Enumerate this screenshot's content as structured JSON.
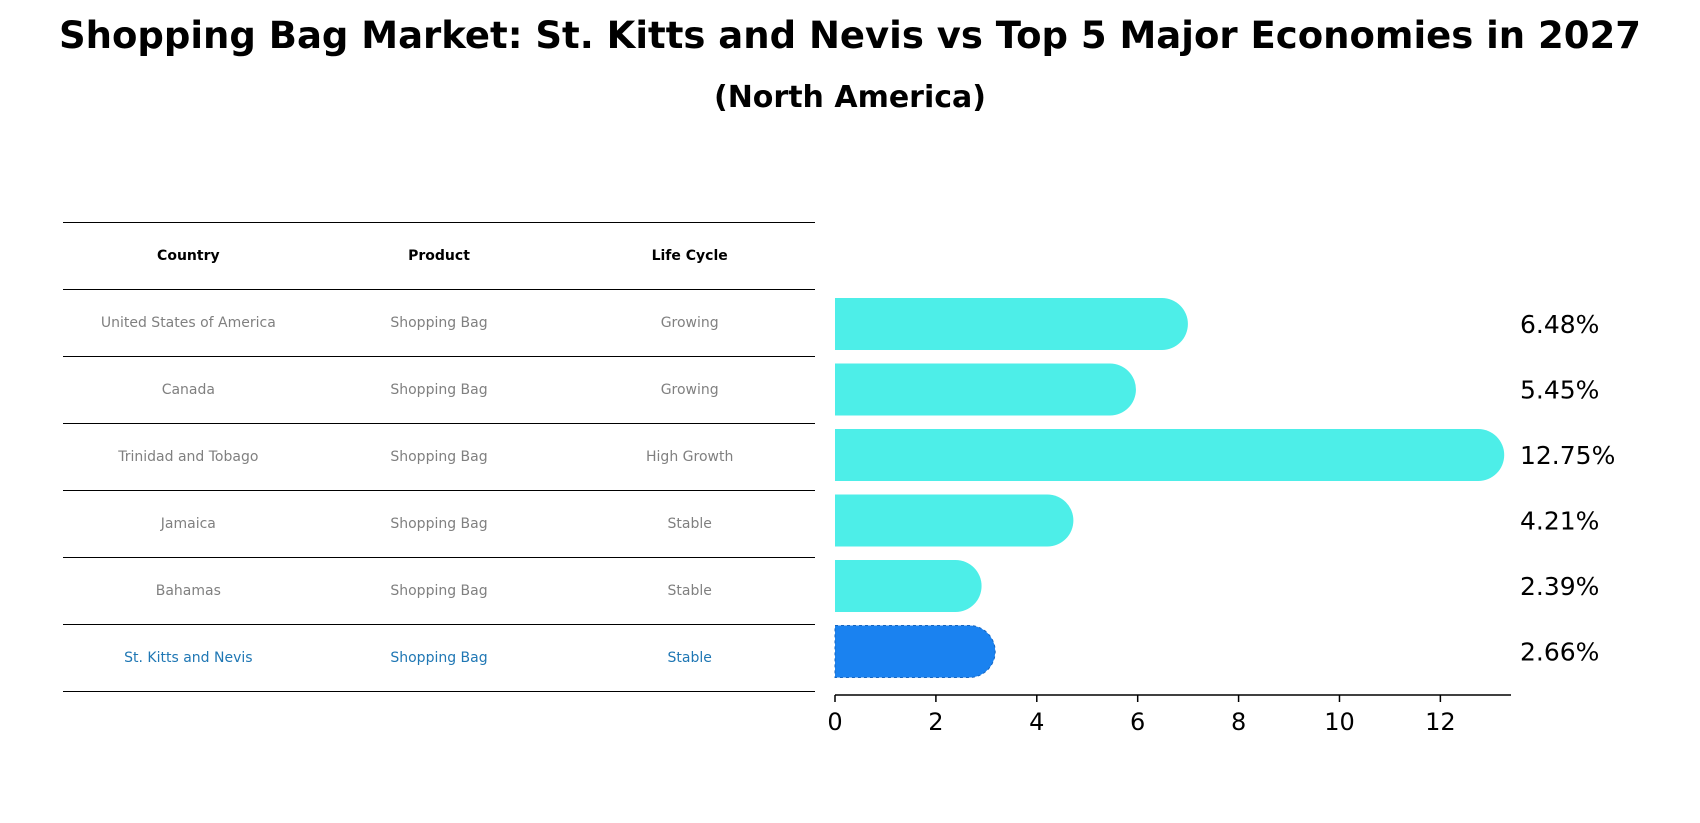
{
  "title": "Shopping Bag Market: St. Kitts and Nevis vs Top 5 Major Economies in 2027",
  "subtitle": "(North America)",
  "table": {
    "headers": [
      "Country",
      "Product",
      "Life Cycle"
    ],
    "rows": [
      [
        "United States of America",
        "Shopping Bag",
        "Growing"
      ],
      [
        "Canada",
        "Shopping Bag",
        "Growing"
      ],
      [
        "Trinidad and Tobago",
        "Shopping Bag",
        "High Growth"
      ],
      [
        "Jamaica",
        "Shopping Bag",
        "Stable"
      ],
      [
        "Bahamas",
        "Shopping Bag",
        "Stable"
      ],
      [
        "St. Kitts and Nevis",
        "Shopping Bag",
        "Stable"
      ]
    ],
    "highlight_row": 5
  },
  "colors": {
    "bar": "#4deee8",
    "highlight_bar": "#1a82f0",
    "highlight_text": "#1f77b4"
  },
  "chart_data": {
    "type": "bar",
    "orientation": "horizontal",
    "categories": [
      "United States of America",
      "Canada",
      "Trinidad and Tobago",
      "Jamaica",
      "Bahamas",
      "St. Kitts and Nevis"
    ],
    "values": [
      6.48,
      5.45,
      12.75,
      4.21,
      2.39,
      2.66
    ],
    "value_labels": [
      "6.48%",
      "5.45%",
      "12.75%",
      "4.21%",
      "2.39%",
      "2.66%"
    ],
    "xlim": [
      0,
      13.4
    ],
    "xticks": [
      0,
      2,
      4,
      6,
      8,
      10,
      12
    ],
    "xlabel": "",
    "ylabel": "",
    "highlight_index": 5
  }
}
